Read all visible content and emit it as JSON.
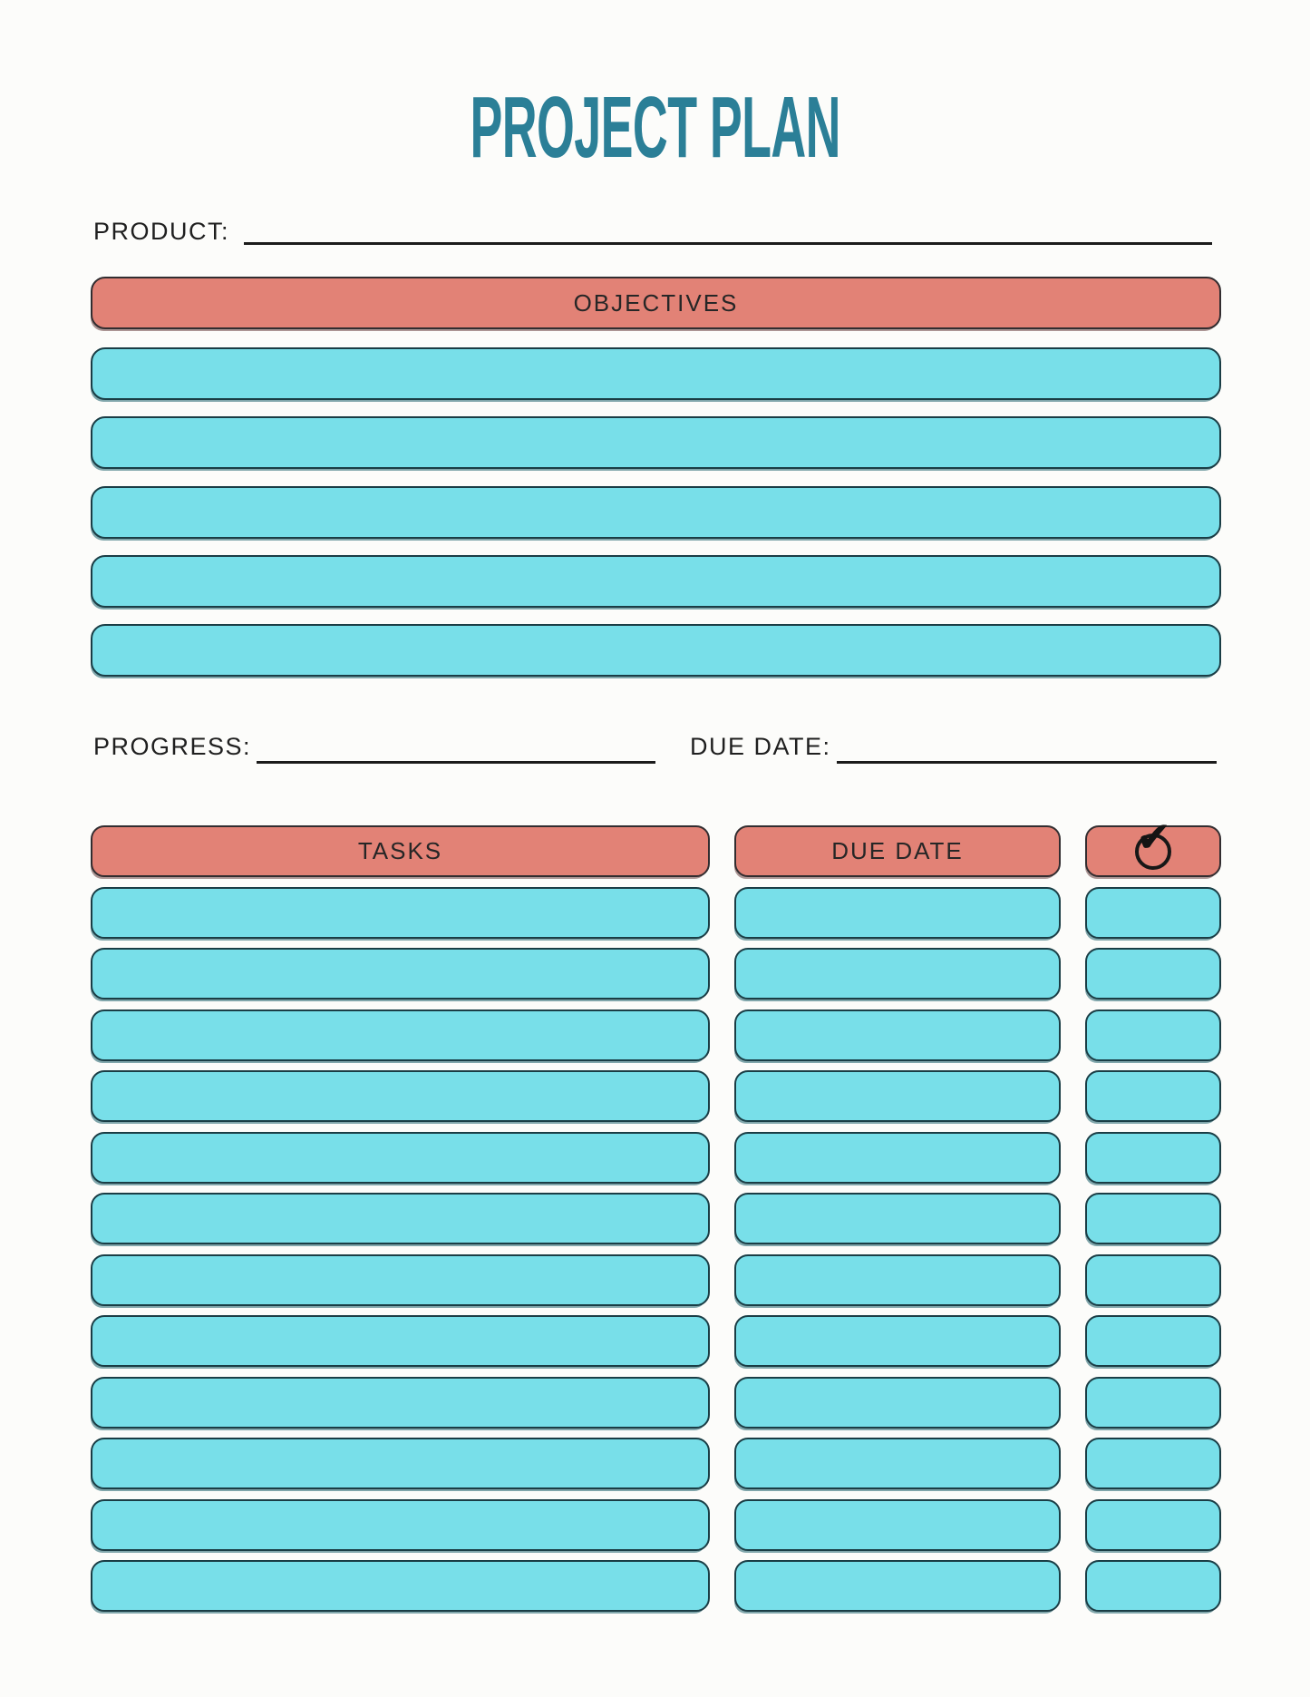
{
  "title": {
    "text": "PROJECT PLAN",
    "color": "#2b7f97"
  },
  "product": {
    "label": "PRODUCT:",
    "value": ""
  },
  "objectives": {
    "header": "OBJECTIVES",
    "row_count": 5,
    "rows": [
      "",
      "",
      "",
      "",
      ""
    ]
  },
  "progress": {
    "label": "PROGRESS:",
    "value": ""
  },
  "due_date": {
    "label": "DUE DATE:",
    "value": ""
  },
  "tasks_table": {
    "columns": [
      {
        "label": "TASKS"
      },
      {
        "label": "DUE DATE"
      },
      {
        "label": "",
        "icon": "check-circle-icon"
      }
    ],
    "check_icon_glyph": "✔",
    "row_count": 12
  },
  "colors": {
    "salmon": "#e28276",
    "cyan": "#78dfe9",
    "teal_title": "#2b7f97",
    "border_dark": "#322d30",
    "border_teal": "#1a3d45",
    "page_bg": "#fcfcfa"
  }
}
